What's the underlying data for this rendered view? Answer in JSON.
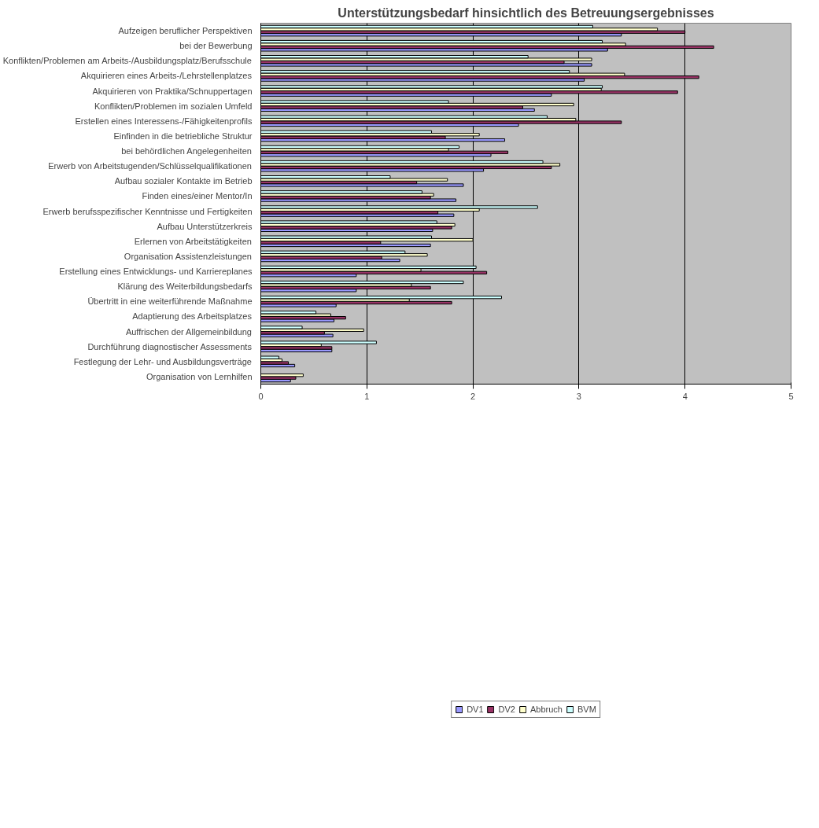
{
  "chart_data": {
    "type": "bar",
    "orientation": "horizontal",
    "title": "Unterstützungsbedarf hinsichtlich des Betreuungsergebnisses",
    "categories": [
      "Aufzeigen beruflicher Perspektiven",
      "bei der Bewerbung",
      "Konflikten/Problemen am Arbeits-/Ausbildungsplatz/Berufsschule",
      "Akquirieren eines Arbeits-/Lehrstellenplatzes",
      "Akquirieren von Praktika/Schnuppertagen",
      "Konflikten/Problemen im sozialen Umfeld",
      "Erstellen eines Interessens-/Fähigkeitenprofils",
      "Einfinden in die betriebliche Struktur",
      "bei behördlichen Angelegenheiten",
      "Erwerb von Arbeitstugenden/Schlüsselqualifikationen",
      "Aufbau sozialer Kontakte im Betrieb",
      "Finden eines/einer Mentor/In",
      "Erwerb berufsspezifischer Kenntnisse und Fertigkeiten",
      "Aufbau Unterstützerkreis",
      "Erlernen von Arbeitstätigkeiten",
      "Organisation Assistenzleistungen",
      "Erstellung eines Entwicklungs- und Karriereplanes",
      "Klärung des Weiterbildungsbedarfs",
      "Übertritt in eine weiterführende Maßnahme",
      "Adaptierung des Arbeitsplatzes",
      "Auffrischen der Allgemeinbildung",
      "Durchführung diagnostischer Assessments",
      "Festlegung der Lehr- und Ausbildungsverträge",
      "Organisation von Lernhilfen"
    ],
    "series": [
      {
        "name": "DV1",
        "color": "#9999ff",
        "values": [
          3.4,
          3.27,
          3.12,
          3.05,
          2.74,
          2.58,
          2.43,
          2.3,
          2.17,
          2.1,
          1.91,
          1.84,
          1.82,
          1.62,
          1.6,
          1.31,
          0.9,
          0.9,
          0.71,
          0.69,
          0.68,
          0.67,
          0.32,
          0.28
        ]
      },
      {
        "name": "DV2",
        "color": "#993366",
        "values": [
          4.0,
          4.27,
          2.86,
          4.13,
          3.93,
          2.47,
          3.4,
          1.74,
          2.33,
          2.74,
          1.47,
          1.6,
          1.67,
          1.8,
          1.13,
          1.14,
          2.13,
          1.6,
          1.8,
          0.8,
          0.6,
          0.67,
          0.26,
          0.33
        ]
      },
      {
        "name": "Abbruch",
        "color": "#ffffcc",
        "values": [
          3.74,
          3.44,
          3.12,
          3.43,
          3.21,
          2.95,
          2.97,
          2.06,
          1.77,
          2.82,
          1.76,
          1.63,
          2.06,
          1.83,
          2.0,
          1.57,
          1.51,
          1.42,
          1.4,
          0.66,
          0.97,
          0.57,
          0.2,
          0.4
        ]
      },
      {
        "name": "BVM",
        "color": "#ccffff",
        "values": [
          3.13,
          3.22,
          2.52,
          2.91,
          3.22,
          1.77,
          2.7,
          1.61,
          1.87,
          2.66,
          1.22,
          1.52,
          2.61,
          1.66,
          1.61,
          1.36,
          2.03,
          1.91,
          2.27,
          0.52,
          0.39,
          1.09,
          0.17,
          null
        ]
      }
    ],
    "xlim": [
      0,
      5
    ],
    "xticks": [
      0,
      1,
      2,
      3,
      4,
      5
    ],
    "grid": "x",
    "legend": "bottom"
  }
}
